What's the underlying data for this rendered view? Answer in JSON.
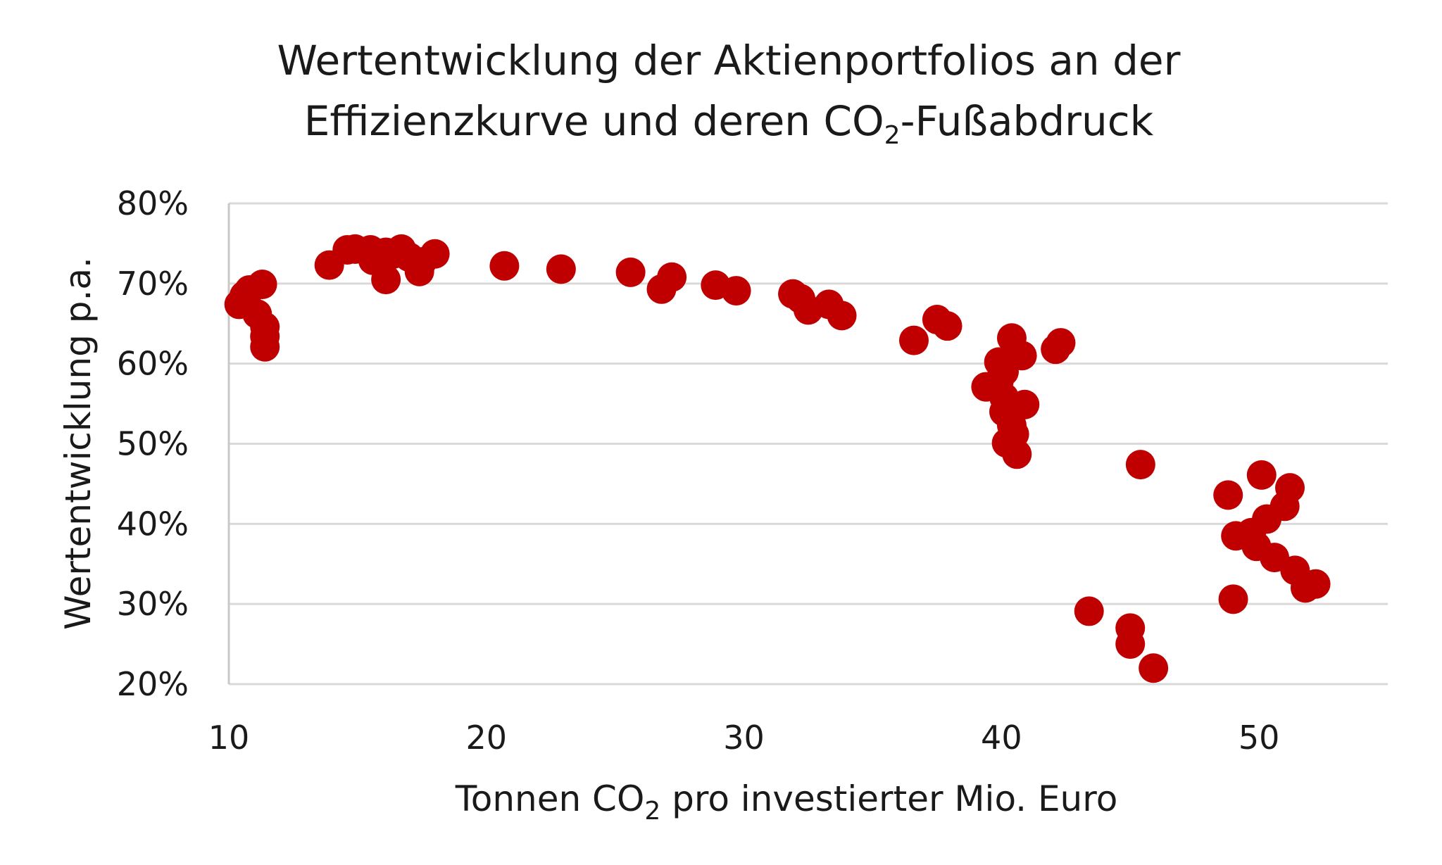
{
  "chart_data": {
    "type": "scatter",
    "title": {
      "line1": "Wertentwicklung der Aktienportfolios an der",
      "line2_pre": "Effizienzkurve und deren CO",
      "line2_sub": "2",
      "line2_post": "-Fußabdruck"
    },
    "xlabel": {
      "pre": "Tonnen CO",
      "sub": "2",
      "post": " pro investierter Mio. Euro"
    },
    "ylabel": "Wertentwicklung p.a.",
    "xlim": [
      10,
      55
    ],
    "ylim": [
      20,
      80
    ],
    "x_ticks": [
      10,
      20,
      30,
      40,
      50
    ],
    "x_tick_labels": [
      "10",
      "20",
      "30",
      "40",
      "50"
    ],
    "y_ticks": [
      20,
      30,
      40,
      50,
      60,
      70,
      80
    ],
    "y_tick_labels": [
      "20%",
      "30%",
      "40%",
      "50%",
      "60%",
      "70%",
      "80%"
    ],
    "grid": "horizontal",
    "marker_color": "#c00000",
    "points": [
      [
        10.4,
        67.4
      ],
      [
        10.6,
        68.5
      ],
      [
        10.8,
        69.2
      ],
      [
        11.3,
        69.9
      ],
      [
        11.1,
        66.2
      ],
      [
        11.4,
        64.6
      ],
      [
        11.4,
        63.4
      ],
      [
        11.4,
        62.1
      ],
      [
        13.9,
        72.3
      ],
      [
        14.6,
        74.2
      ],
      [
        14.9,
        74.3
      ],
      [
        15.5,
        74.2
      ],
      [
        15.6,
        72.9
      ],
      [
        16.1,
        73.9
      ],
      [
        16.1,
        70.5
      ],
      [
        16.4,
        73.7
      ],
      [
        16.7,
        74.3
      ],
      [
        17.0,
        73.3
      ],
      [
        17.4,
        71.5
      ],
      [
        17.5,
        72.7
      ],
      [
        18.0,
        73.7
      ],
      [
        20.7,
        72.2
      ],
      [
        22.9,
        71.8
      ],
      [
        25.6,
        71.4
      ],
      [
        26.8,
        69.3
      ],
      [
        27.2,
        70.8
      ],
      [
        28.9,
        69.8
      ],
      [
        29.7,
        69.1
      ],
      [
        31.9,
        68.7
      ],
      [
        32.2,
        68.1
      ],
      [
        32.5,
        66.7
      ],
      [
        33.3,
        67.4
      ],
      [
        33.8,
        66.0
      ],
      [
        36.6,
        62.9
      ],
      [
        37.5,
        65.5
      ],
      [
        37.9,
        64.7
      ],
      [
        39.4,
        57.1
      ],
      [
        39.9,
        60.2
      ],
      [
        40.1,
        59.0
      ],
      [
        39.9,
        57.8
      ],
      [
        40.1,
        55.8
      ],
      [
        40.1,
        54.0
      ],
      [
        40.4,
        52.3
      ],
      [
        40.5,
        51.2
      ],
      [
        40.2,
        50.1
      ],
      [
        40.6,
        48.7
      ],
      [
        40.4,
        63.2
      ],
      [
        40.8,
        61.0
      ],
      [
        40.9,
        54.9
      ],
      [
        42.1,
        61.8
      ],
      [
        42.3,
        62.6
      ],
      [
        43.4,
        29.1
      ],
      [
        45.0,
        27.0
      ],
      [
        45.0,
        25.0
      ],
      [
        45.4,
        47.4
      ],
      [
        45.9,
        22.0
      ],
      [
        48.8,
        43.6
      ],
      [
        49.0,
        30.6
      ],
      [
        49.1,
        38.5
      ],
      [
        49.7,
        38.9
      ],
      [
        49.9,
        37.2
      ],
      [
        50.1,
        46.1
      ],
      [
        50.3,
        40.6
      ],
      [
        50.6,
        35.8
      ],
      [
        51.0,
        42.2
      ],
      [
        51.2,
        44.5
      ],
      [
        51.4,
        34.2
      ],
      [
        51.8,
        32.0
      ],
      [
        52.2,
        32.5
      ]
    ]
  }
}
